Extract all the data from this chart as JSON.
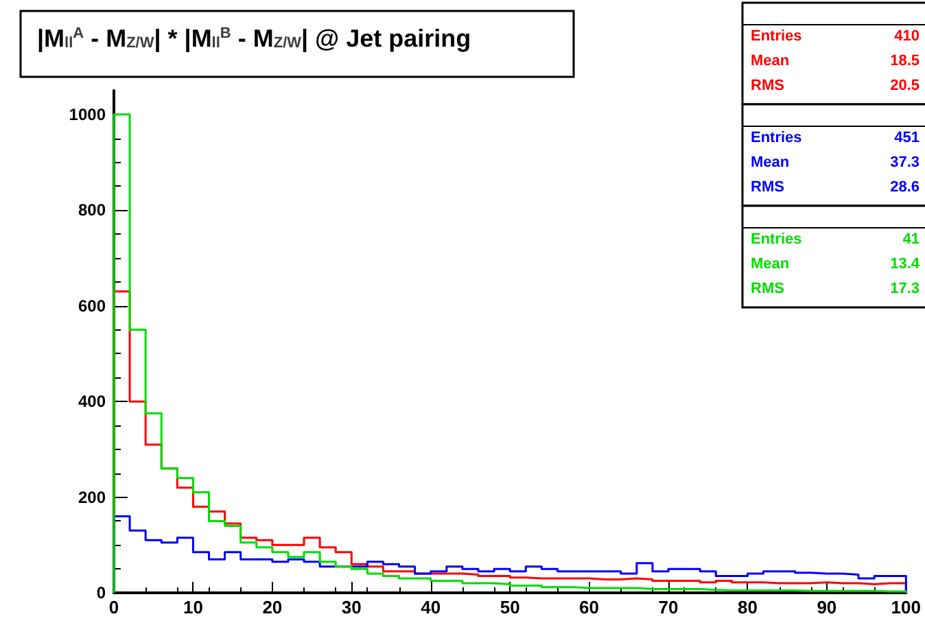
{
  "chart_data": {
    "type": "histogram",
    "title": "|M$_{ll}$$^{A}$ - M$_{Z/W}$| * |M$_{ll}$$^{B}$ - M$_{Z/W}$| @ Jet pairing",
    "bins": [
      0,
      2,
      4,
      6,
      8,
      10,
      12,
      14,
      16,
      18,
      20,
      22,
      24,
      26,
      28,
      30,
      32,
      34,
      36,
      38,
      40,
      42,
      44,
      46,
      48,
      50,
      52,
      54,
      56,
      58,
      60,
      62,
      64,
      66,
      68,
      70,
      72,
      74,
      76,
      78,
      80,
      82,
      84,
      86,
      88,
      90,
      92,
      94,
      96,
      98,
      100
    ],
    "series": [
      {
        "color": "#ff0000",
        "values": [
          630,
          400,
          310,
          260,
          220,
          180,
          170,
          145,
          115,
          110,
          100,
          100,
          115,
          95,
          85,
          60,
          55,
          45,
          45,
          40,
          40,
          40,
          38,
          35,
          35,
          32,
          30,
          30,
          30,
          30,
          28,
          28,
          30,
          28,
          25,
          25,
          25,
          22,
          25,
          22,
          22,
          20,
          20,
          20,
          22,
          20,
          20,
          18,
          20,
          20
        ]
      },
      {
        "color": "#0000ff",
        "values": [
          160,
          130,
          110,
          105,
          115,
          85,
          70,
          85,
          70,
          70,
          65,
          70,
          65,
          55,
          55,
          55,
          65,
          60,
          55,
          40,
          45,
          55,
          50,
          45,
          50,
          45,
          55,
          50,
          45,
          45,
          45,
          45,
          40,
          62,
          45,
          50,
          50,
          45,
          35,
          35,
          40,
          45,
          45,
          42,
          40,
          40,
          38,
          30,
          35,
          35
        ]
      },
      {
        "color": "#00dd00",
        "values": [
          1000,
          550,
          375,
          260,
          240,
          210,
          150,
          140,
          105,
          95,
          85,
          75,
          85,
          65,
          55,
          50,
          40,
          35,
          30,
          30,
          25,
          25,
          20,
          20,
          18,
          15,
          15,
          12,
          12,
          10,
          10,
          10,
          10,
          8,
          8,
          8,
          8,
          6,
          5,
          5,
          5,
          5,
          5,
          4,
          4,
          4,
          4,
          4,
          3,
          3
        ]
      }
    ],
    "annotations": [
      "Entries 410",
      "Mean 18.5",
      "RMS 20.5",
      "Entries 451",
      "Mean 37.3",
      "RMS 28.6",
      "Entries 41",
      "Mean 13.4",
      "RMS 17.3"
    ],
    "xlim": [
      0,
      100
    ],
    "xticks": [
      0,
      10,
      20,
      30,
      40,
      50,
      60,
      70,
      80,
      90,
      100
    ],
    "ylim": [
      0,
      1050
    ],
    "yticks": [
      0,
      200,
      400,
      600,
      800,
      1000
    ],
    "grid": false
  }
}
